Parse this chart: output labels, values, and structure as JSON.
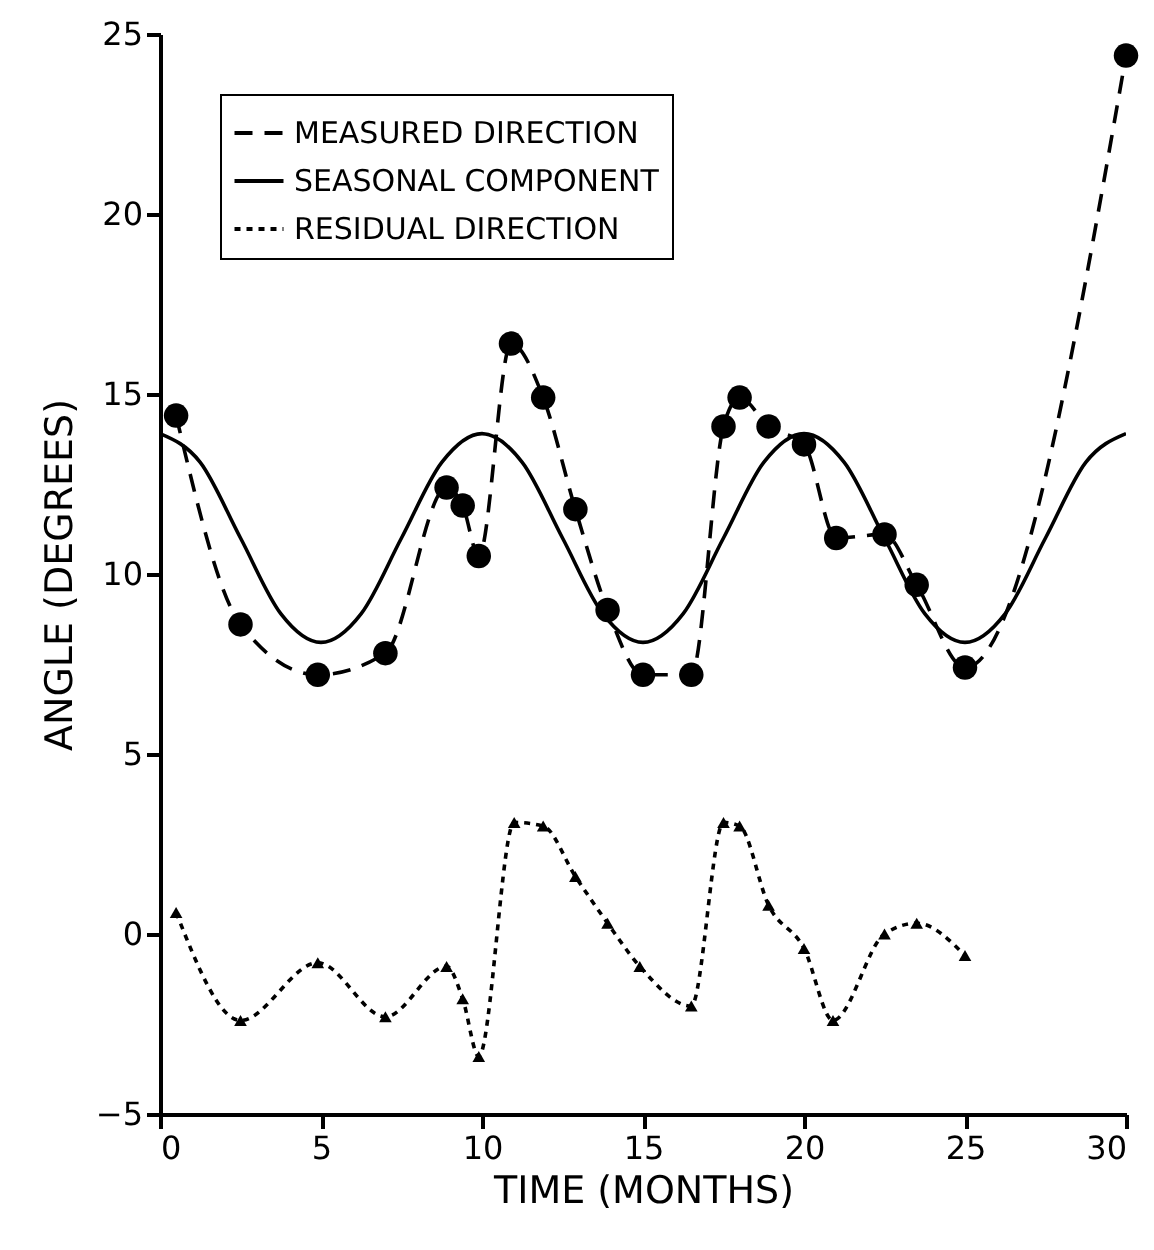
{
  "chart_data": {
    "type": "line",
    "xlabel": "TIME (MONTHS)",
    "ylabel": "ANGLE (DEGREES)",
    "xlim": [
      0,
      30
    ],
    "ylim": [
      -5,
      25
    ],
    "xticks": [
      0,
      5,
      10,
      15,
      20,
      25,
      30
    ],
    "yticks": [
      -5,
      0,
      5,
      10,
      15,
      20,
      25
    ],
    "grid": false,
    "legend": "top left",
    "series": [
      {
        "name": "MEASURED DIRECTION",
        "color": "#000000",
        "marker": "circle",
        "line_style": "dashed",
        "x": [
          0.5,
          2.5,
          4.9,
          7.0,
          8.9,
          9.4,
          9.9,
          10.9,
          11.9,
          12.9,
          13.9,
          15.0,
          16.5,
          17.5,
          18.0,
          18.9,
          20.0,
          21.0,
          22.5,
          23.5,
          25.0,
          30.0
        ],
        "values": [
          14.4,
          8.6,
          7.2,
          7.8,
          12.4,
          11.9,
          10.5,
          16.4,
          14.9,
          11.8,
          9.0,
          7.2,
          7.2,
          14.1,
          14.9,
          14.1,
          13.6,
          11.0,
          11.1,
          9.7,
          7.4,
          24.4
        ]
      },
      {
        "name": "SEASONAL COMPONENT",
        "color": "#000000",
        "marker": "none",
        "line_style": "solid",
        "x": [
          0,
          1.25,
          2.5,
          3.75,
          5,
          6.25,
          7.5,
          8.75,
          10,
          11.25,
          12.5,
          13.75,
          15,
          16.25,
          17.5,
          18.75,
          20,
          21.25,
          22.5,
          23.75,
          25,
          26.25,
          27.5,
          28.75,
          30
        ],
        "values": [
          13.9,
          13.1,
          11.0,
          8.9,
          8.1,
          8.9,
          11.0,
          13.1,
          13.9,
          13.1,
          11.0,
          8.9,
          8.1,
          8.9,
          11.0,
          13.1,
          13.9,
          13.1,
          11.0,
          8.9,
          8.1,
          8.9,
          11.0,
          13.1,
          13.9
        ]
      },
      {
        "name": "RESIDUAL DIRECTION",
        "color": "#000000",
        "marker": "triangle",
        "line_style": "dotted",
        "x": [
          0.5,
          2.5,
          4.9,
          7.0,
          8.9,
          9.4,
          9.9,
          11.0,
          11.9,
          12.9,
          13.9,
          14.9,
          16.5,
          17.5,
          18.0,
          18.9,
          20.0,
          20.9,
          22.5,
          23.5,
          25.0
        ],
        "values": [
          0.6,
          -2.4,
          -0.8,
          -2.3,
          -0.9,
          -1.8,
          -3.4,
          3.1,
          3.0,
          1.6,
          0.3,
          -0.9,
          -2.0,
          3.1,
          3.0,
          0.8,
          -0.4,
          -2.4,
          0.0,
          0.3,
          -0.6
        ]
      }
    ]
  }
}
